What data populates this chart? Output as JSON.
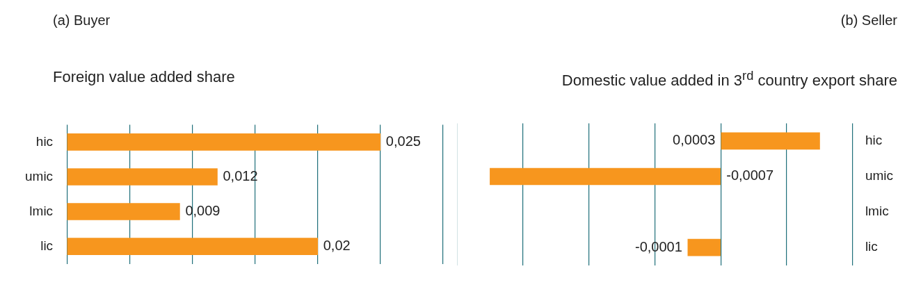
{
  "chart_data": [
    {
      "type": "bar",
      "orientation": "horizontal",
      "title": "(a) Buyer",
      "subtitle": "Foreign value added share",
      "categories": [
        "hic",
        "umic",
        "lmic",
        "lic"
      ],
      "values": [
        0.025,
        0.012,
        0.009,
        0.02
      ],
      "value_labels": [
        "0,025",
        "0,012",
        "0,009",
        "0,02"
      ],
      "color": "#f7961e",
      "xlim": [
        0,
        0.03
      ],
      "xticks": [
        {
          "value": 0,
          "label": null
        },
        {
          "value": 0.005,
          "label": null
        },
        {
          "value": 0.01,
          "label": null
        },
        {
          "value": 0.015,
          "label": null
        },
        {
          "value": 0.02,
          "label": null
        },
        {
          "value": 0.025,
          "label": null
        },
        {
          "value": 0.03,
          "label": null
        }
      ],
      "grid": "x",
      "tick_labels": "y"
    },
    {
      "type": "bar",
      "orientation": "horizontal",
      "title": "(b) Seller",
      "subtitle": "Domestic value added in 3$^{rd}$ country export share",
      "categories": [
        "hic",
        "umic",
        "lmic",
        "lic"
      ],
      "values": [
        0.0003,
        -0.0007,
        null,
        -0.0001
      ],
      "value_labels": [
        "0,0003",
        "-0,0007",
        null,
        "-0,0001"
      ],
      "color": "#f7961e",
      "xlim": [
        -0.0008,
        0.0004
      ],
      "xticks": [
        {
          "value": -0.0008,
          "label": null
        },
        {
          "value": -0.0006,
          "label": null
        },
        {
          "value": -0.0004,
          "label": null
        },
        {
          "value": -0.0002,
          "label": null
        },
        {
          "value": 0,
          "label": null
        },
        {
          "value": 0.0002,
          "label": null
        },
        {
          "value": 0.0004,
          "label": null
        }
      ],
      "grid": "x",
      "tick_labels": "y"
    }
  ]
}
